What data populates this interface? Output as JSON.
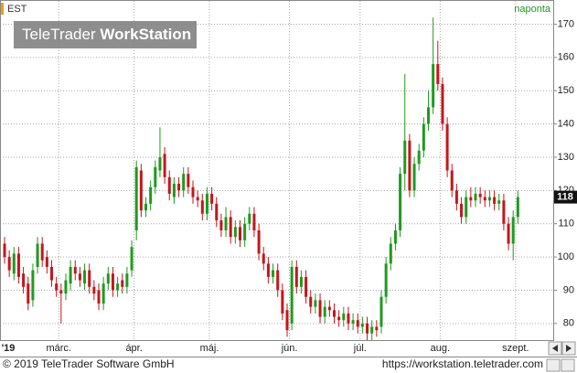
{
  "chart_data": {
    "type": "candlestick",
    "title": "EST",
    "period": "naponta",
    "watermark": [
      "TeleTrader",
      "WorkStation"
    ],
    "copyright": "© 2019 TeleTrader Software GmbH",
    "url": "https://workstation.teletrader.com",
    "up_color": "#1f9a1f",
    "down_color": "#c4161c",
    "grid": true,
    "ylim": [
      75,
      177
    ],
    "yticks": [
      80,
      90,
      100,
      110,
      120,
      130,
      140,
      150,
      160,
      170
    ],
    "categories": [
      "'19",
      null,
      null,
      null,
      null,
      null,
      null,
      null,
      null,
      null,
      null,
      null,
      "márc.",
      null,
      null,
      null,
      null,
      null,
      null,
      null,
      null,
      null,
      null,
      null,
      null,
      null,
      null,
      null,
      "ápr.",
      null,
      null,
      null,
      null,
      null,
      null,
      null,
      null,
      null,
      null,
      null,
      null,
      null,
      null,
      null,
      "máj.",
      null,
      null,
      null,
      null,
      null,
      null,
      null,
      null,
      null,
      null,
      null,
      null,
      null,
      null,
      null,
      null,
      "jún.",
      null,
      null,
      null,
      null,
      null,
      null,
      null,
      null,
      null,
      null,
      null,
      null,
      null,
      null,
      "júl.",
      null,
      null,
      null,
      null,
      null,
      null,
      null,
      null,
      null,
      null,
      null,
      null,
      null,
      null,
      null,
      null,
      "aug.",
      null,
      null,
      null,
      null,
      null,
      null,
      null,
      null,
      null,
      null,
      null,
      null,
      null,
      null,
      null,
      "szept."
    ],
    "open": [
      104,
      100,
      95,
      101,
      95,
      92,
      87,
      97,
      104,
      100,
      97,
      92,
      90,
      89,
      92,
      97,
      95,
      92,
      96,
      91,
      90,
      86,
      92,
      95,
      90,
      93,
      91,
      96,
      108,
      126,
      114,
      116,
      121,
      126,
      131,
      124,
      118,
      122,
      120,
      125,
      121,
      118,
      117,
      113,
      119,
      116,
      111,
      108,
      112,
      106,
      109,
      105,
      110,
      113,
      108,
      101,
      98,
      94,
      96,
      90,
      84,
      80,
      97,
      91,
      94,
      88,
      85,
      87,
      82,
      85,
      84,
      82,
      81,
      83,
      80,
      81,
      79,
      80,
      77,
      79,
      79,
      88,
      98,
      104,
      108,
      125,
      135,
      120,
      128,
      132,
      140,
      145,
      158,
      152,
      140,
      126,
      120,
      116,
      112,
      118,
      117,
      119,
      118,
      117,
      118,
      116,
      117,
      110,
      104,
      112
    ],
    "high": [
      106,
      102,
      103,
      103,
      97,
      94,
      98,
      106,
      106,
      102,
      99,
      94,
      92,
      95,
      99,
      99,
      97,
      98,
      98,
      93,
      92,
      94,
      97,
      97,
      94,
      95,
      97,
      105,
      129,
      128,
      118,
      123,
      129,
      139,
      133,
      126,
      124,
      124,
      127,
      127,
      123,
      120,
      119,
      121,
      121,
      118,
      113,
      115,
      114,
      111,
      111,
      112,
      115,
      115,
      110,
      103,
      100,
      98,
      98,
      92,
      86,
      99,
      99,
      96,
      96,
      90,
      89,
      89,
      87,
      87,
      86,
      84,
      85,
      85,
      83,
      83,
      82,
      82,
      81,
      81,
      90,
      100,
      106,
      110,
      127,
      155,
      137,
      130,
      134,
      142,
      150,
      172,
      165,
      154,
      142,
      128,
      122,
      118,
      120,
      121,
      121,
      121,
      120,
      120,
      120,
      119,
      119,
      112,
      114,
      120
    ],
    "low": [
      98,
      94,
      93,
      92,
      89,
      84,
      85,
      95,
      97,
      95,
      91,
      88,
      80,
      87,
      90,
      93,
      91,
      90,
      89,
      87,
      84,
      84,
      90,
      88,
      88,
      89,
      89,
      94,
      105,
      112,
      112,
      114,
      119,
      124,
      122,
      117,
      116,
      118,
      118,
      119,
      116,
      115,
      111,
      111,
      114,
      109,
      106,
      106,
      104,
      104,
      103,
      103,
      108,
      106,
      99,
      96,
      92,
      92,
      88,
      81,
      76,
      78,
      89,
      89,
      86,
      83,
      83,
      80,
      80,
      82,
      80,
      79,
      79,
      78,
      78,
      77,
      77,
      75,
      75,
      76,
      77,
      86,
      96,
      102,
      106,
      120,
      118,
      118,
      126,
      130,
      138,
      143,
      150,
      138,
      124,
      118,
      114,
      110,
      110,
      115,
      115,
      116,
      115,
      115,
      114,
      114,
      108,
      102,
      99,
      110
    ],
    "close": [
      100,
      96,
      101,
      94,
      91,
      86,
      96,
      104,
      99,
      97,
      93,
      90,
      89,
      93,
      97,
      95,
      93,
      96,
      91,
      89,
      86,
      92,
      95,
      90,
      92,
      91,
      95,
      103,
      127,
      114,
      116,
      121,
      127,
      130,
      124,
      119,
      122,
      120,
      125,
      121,
      118,
      117,
      113,
      119,
      116,
      111,
      108,
      112,
      106,
      109,
      105,
      110,
      113,
      108,
      101,
      98,
      94,
      96,
      90,
      83,
      78,
      97,
      91,
      94,
      88,
      85,
      87,
      82,
      85,
      84,
      82,
      81,
      83,
      80,
      81,
      79,
      80,
      77,
      79,
      78,
      88,
      98,
      104,
      108,
      125,
      135,
      120,
      128,
      132,
      140,
      145,
      158,
      152,
      140,
      126,
      120,
      116,
      112,
      118,
      117,
      119,
      118,
      117,
      118,
      116,
      117,
      110,
      104,
      112,
      118
    ]
  }
}
